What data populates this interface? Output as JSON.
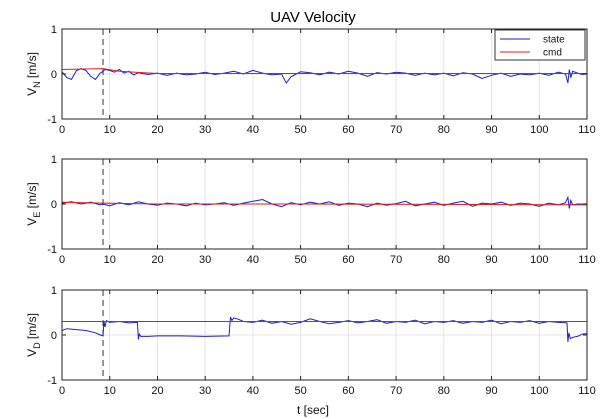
{
  "chart_data": {
    "type": "line",
    "title": "UAV Velocity",
    "xlabel": "t [sec]",
    "xlim": [
      0,
      110
    ],
    "xticks": [
      "0",
      "10",
      "20",
      "30",
      "40",
      "50",
      "60",
      "70",
      "80",
      "90",
      "100",
      "110"
    ],
    "yticks": [
      "-1",
      "0",
      "1"
    ],
    "grid": true,
    "vline_x": 8.6,
    "legend": {
      "location": "top-right",
      "entries": [
        "state",
        "cmd"
      ]
    },
    "series_colors": {
      "state": "#1f1fbf",
      "cmd": "#d62020"
    },
    "panels": [
      {
        "ylabel_main": "V",
        "ylabel_sub": "N",
        "ylabel_unit": " [m/s]",
        "ylim": [
          -1,
          1
        ],
        "series": [
          {
            "name": "state",
            "x": [
              0,
              1,
              2,
              3,
              4,
              5,
              6,
              7,
              8,
              8.6,
              9,
              10,
              11,
              12,
              13,
              14,
              15,
              16,
              18,
              20,
              22,
              24,
              26,
              28,
              30,
              32,
              34,
              36,
              38,
              40,
              42,
              44,
              46,
              47,
              48,
              50,
              52,
              54,
              56,
              58,
              60,
              62,
              64,
              66,
              68,
              70,
              72,
              74,
              76,
              78,
              80,
              82,
              84,
              86,
              88,
              90,
              92,
              94,
              96,
              98,
              100,
              102,
              104,
              105.5,
              106,
              106.3,
              106.6,
              107,
              108,
              109,
              110
            ],
            "y": [
              0.05,
              -0.08,
              -0.12,
              0.07,
              0.12,
              0.08,
              -0.05,
              -0.12,
              0.02,
              0.06,
              0.1,
              0.08,
              0.04,
              0.1,
              0.02,
              0.06,
              -0.02,
              0.03,
              -0.01,
              0.02,
              -0.03,
              0.02,
              -0.02,
              0.0,
              0.04,
              -0.01,
              0.02,
              0.06,
              0.0,
              0.08,
              0.02,
              -0.02,
              0.0,
              -0.2,
              -0.06,
              0.05,
              0.03,
              -0.02,
              0.04,
              0.0,
              0.06,
              0.02,
              -0.05,
              0.03,
              0.0,
              0.04,
              0.02,
              -0.03,
              0.02,
              -0.02,
              0.02,
              -0.04,
              0.03,
              0.0,
              -0.1,
              -0.03,
              0.02,
              -0.05,
              0.0,
              -0.02,
              0.02,
              -0.03,
              0.04,
              0.0,
              -0.2,
              0.1,
              -0.08,
              0.06,
              0.02,
              -0.01,
              0.0
            ]
          },
          {
            "name": "cmd",
            "x": [
              0,
              8.6,
              12,
              20,
              110
            ],
            "y": [
              0.1,
              0.12,
              0.06,
              0.01,
              0.01
            ]
          }
        ]
      },
      {
        "ylabel_main": "V",
        "ylabel_sub": "E",
        "ylabel_unit": " [m/s]",
        "ylim": [
          -1,
          1
        ],
        "series": [
          {
            "name": "state",
            "x": [
              0,
              2,
              4,
              6,
              8,
              8.6,
              10,
              12,
              14,
              16,
              18,
              20,
              22,
              24,
              26,
              28,
              30,
              32,
              34,
              36,
              38,
              40,
              42,
              44,
              46,
              48,
              50,
              52,
              54,
              56,
              58,
              60,
              62,
              64,
              66,
              68,
              70,
              72,
              74,
              76,
              78,
              80,
              82,
              84,
              86,
              88,
              90,
              92,
              94,
              96,
              98,
              100,
              102,
              104,
              105.5,
              106,
              106.3,
              106.6,
              107,
              108,
              110
            ],
            "y": [
              0.02,
              0.05,
              0.0,
              0.04,
              -0.02,
              0.0,
              -0.04,
              0.03,
              -0.02,
              0.05,
              0.0,
              -0.03,
              0.02,
              0.0,
              -0.04,
              0.02,
              -0.02,
              0.0,
              0.03,
              -0.03,
              0.02,
              0.06,
              0.1,
              0.0,
              -0.06,
              0.03,
              -0.02,
              0.04,
              0.0,
              0.05,
              -0.03,
              0.02,
              0.0,
              -0.06,
              0.02,
              -0.03,
              0.01,
              0.06,
              -0.04,
              0.0,
              0.04,
              -0.03,
              0.02,
              0.06,
              -0.05,
              0.02,
              0.0,
              0.04,
              -0.03,
              0.02,
              0.0,
              -0.05,
              0.02,
              -0.02,
              0.03,
              0.15,
              -0.1,
              0.08,
              -0.02,
              0.0,
              -0.01
            ]
          },
          {
            "name": "cmd",
            "x": [
              0,
              8.6,
              20,
              50,
              80,
              110
            ],
            "y": [
              0.04,
              0.02,
              0.0,
              0.0,
              -0.01,
              -0.02
            ]
          }
        ]
      },
      {
        "ylabel_main": "V",
        "ylabel_sub": "D",
        "ylabel_unit": " [m/s]",
        "ylim": [
          -1,
          1
        ],
        "series": [
          {
            "name": "state",
            "x": [
              0,
              1,
              3,
              5,
              7,
              8,
              8.6,
              8.8,
              9,
              9.3,
              10,
              12,
              14,
              15.8,
              16,
              16.2,
              16.5,
              18,
              20,
              25,
              30,
              35,
              35.3,
              35.6,
              36,
              37,
              38,
              40,
              42,
              44,
              46,
              48,
              50,
              52,
              54,
              56,
              58,
              60,
              62,
              64,
              66,
              68,
              70,
              72,
              74,
              76,
              78,
              80,
              82,
              84,
              86,
              88,
              90,
              92,
              94,
              96,
              98,
              100,
              102,
              104,
              105.8,
              106,
              106.2,
              106.5,
              107,
              108,
              109,
              110
            ],
            "y": [
              0.1,
              0.14,
              0.12,
              0.1,
              0.05,
              0.0,
              -0.02,
              0.3,
              0.18,
              0.32,
              0.28,
              0.3,
              0.27,
              0.28,
              -0.1,
              0.02,
              -0.03,
              -0.03,
              -0.02,
              -0.02,
              -0.03,
              -0.02,
              0.4,
              0.32,
              0.38,
              0.35,
              0.3,
              0.28,
              0.33,
              0.26,
              0.3,
              0.24,
              0.28,
              0.36,
              0.3,
              0.25,
              0.28,
              0.32,
              0.27,
              0.3,
              0.34,
              0.26,
              0.3,
              0.28,
              0.33,
              0.25,
              0.3,
              0.28,
              0.32,
              0.26,
              0.3,
              0.28,
              0.33,
              0.25,
              0.3,
              0.28,
              0.32,
              0.26,
              0.3,
              0.28,
              0.27,
              -0.15,
              0.05,
              -0.08,
              -0.05,
              -0.03,
              0.02,
              0.03
            ]
          },
          {
            "name": "cmd",
            "x": [
              0,
              110
            ],
            "y": [
              0.3,
              0.3
            ]
          }
        ]
      }
    ]
  }
}
